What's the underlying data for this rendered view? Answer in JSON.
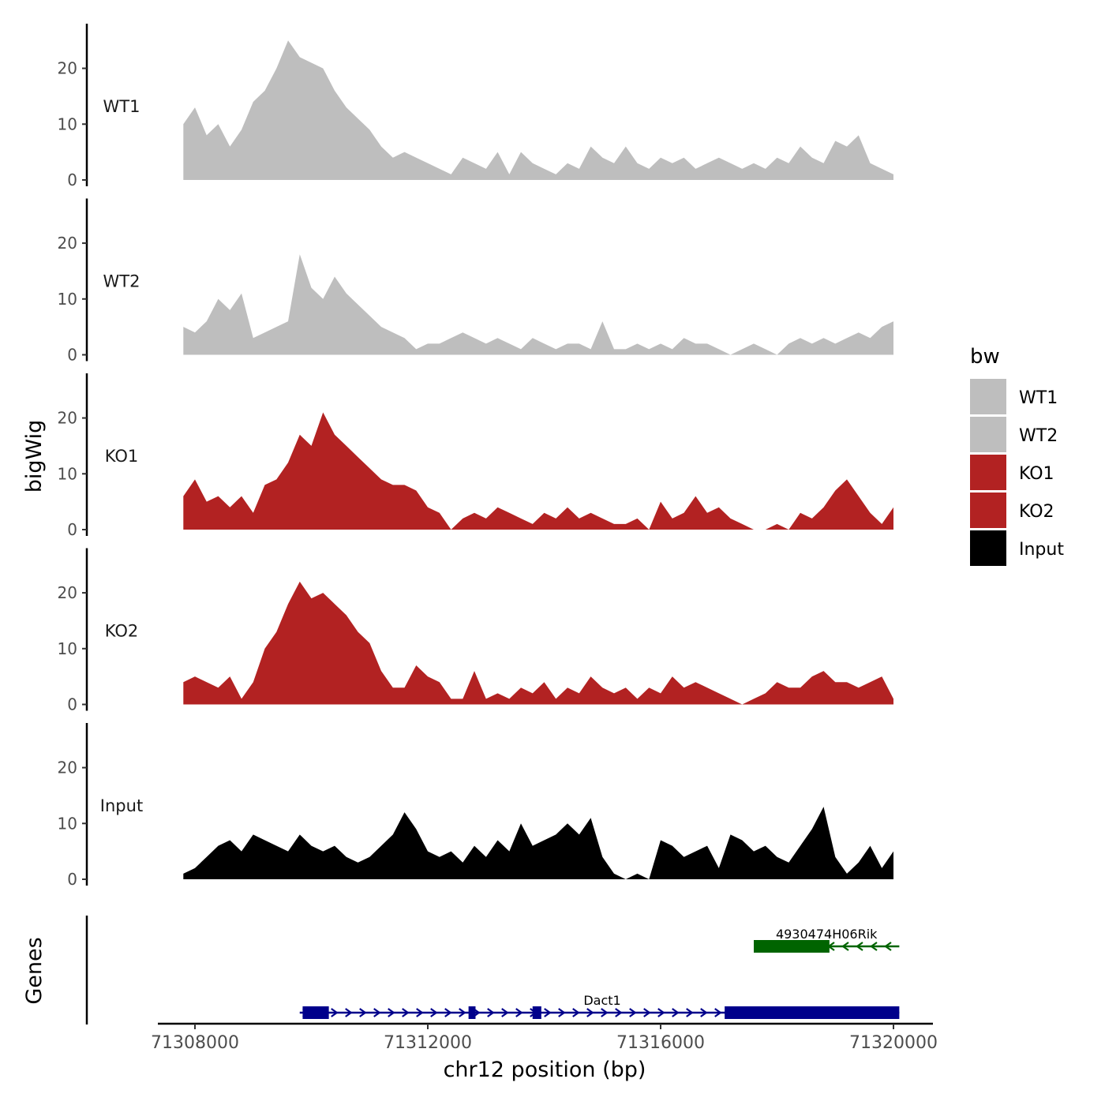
{
  "chart_data": {
    "type": "area",
    "ylabel": "bigWig",
    "xlabel": "chr12 position (bp)",
    "genes_label": "Genes",
    "chromosome": "chr12",
    "xlim": [
      71307800,
      71320100
    ],
    "x_ticks": [
      71308000,
      71312000,
      71316000,
      71320000
    ],
    "x_tick_labels": [
      "71308000",
      "71312000",
      "71316000",
      "71320000"
    ],
    "ylim": [
      0,
      28
    ],
    "y_ticks": [
      0,
      10,
      20
    ],
    "y_tick_labels": [
      "0",
      "10",
      "20"
    ],
    "legend": {
      "title": "bw",
      "entries": [
        {
          "label": "WT1",
          "color": "#bebebe"
        },
        {
          "label": "WT2",
          "color": "#bebebe"
        },
        {
          "label": "KO1",
          "color": "#b22222"
        },
        {
          "label": "KO2",
          "color": "#b22222"
        },
        {
          "label": "Input",
          "color": "#000000"
        }
      ]
    },
    "tracks": [
      {
        "name": "WT1",
        "color": "#bebebe",
        "x": [
          71307800,
          71308000,
          71308200,
          71308400,
          71308600,
          71308800,
          71309000,
          71309200,
          71309400,
          71309600,
          71309800,
          71310000,
          71310200,
          71310400,
          71310600,
          71310800,
          71311000,
          71311200,
          71311400,
          71311600,
          71311800,
          71312000,
          71312200,
          71312400,
          71312600,
          71312800,
          71313000,
          71313200,
          71313400,
          71313600,
          71313800,
          71314000,
          71314200,
          71314400,
          71314600,
          71314800,
          71315000,
          71315200,
          71315400,
          71315600,
          71315800,
          71316000,
          71316200,
          71316400,
          71316600,
          71316800,
          71317000,
          71317200,
          71317400,
          71317600,
          71317800,
          71318000,
          71318200,
          71318400,
          71318600,
          71318800,
          71319000,
          71319200,
          71319400,
          71319600,
          71319800,
          71320000
        ],
        "y": [
          10,
          13,
          8,
          10,
          6,
          9,
          14,
          16,
          20,
          25,
          22,
          21,
          20,
          16,
          13,
          11,
          9,
          6,
          4,
          5,
          4,
          3,
          2,
          1,
          4,
          3,
          2,
          5,
          1,
          5,
          3,
          2,
          1,
          3,
          2,
          6,
          4,
          3,
          6,
          3,
          2,
          4,
          3,
          4,
          2,
          3,
          4,
          3,
          2,
          3,
          2,
          4,
          3,
          6,
          4,
          3,
          7,
          6,
          8,
          3,
          2,
          1
        ]
      },
      {
        "name": "WT2",
        "color": "#bebebe",
        "x": [
          71307800,
          71308000,
          71308200,
          71308400,
          71308600,
          71308800,
          71309000,
          71309200,
          71309400,
          71309600,
          71309800,
          71310000,
          71310200,
          71310400,
          71310600,
          71310800,
          71311000,
          71311200,
          71311400,
          71311600,
          71311800,
          71312000,
          71312200,
          71312400,
          71312600,
          71312800,
          71313000,
          71313200,
          71313400,
          71313600,
          71313800,
          71314000,
          71314200,
          71314400,
          71314600,
          71314800,
          71315000,
          71315200,
          71315400,
          71315600,
          71315800,
          71316000,
          71316200,
          71316400,
          71316600,
          71316800,
          71317000,
          71317200,
          71317400,
          71317600,
          71317800,
          71318000,
          71318200,
          71318400,
          71318600,
          71318800,
          71319000,
          71319200,
          71319400,
          71319600,
          71319800,
          71320000
        ],
        "y": [
          5,
          4,
          6,
          10,
          8,
          11,
          3,
          4,
          5,
          6,
          18,
          12,
          10,
          14,
          11,
          9,
          7,
          5,
          4,
          3,
          1,
          2,
          2,
          3,
          4,
          3,
          2,
          3,
          2,
          1,
          3,
          2,
          1,
          2,
          2,
          1,
          6,
          1,
          1,
          2,
          1,
          2,
          1,
          3,
          2,
          2,
          1,
          0,
          1,
          2,
          1,
          0,
          2,
          3,
          2,
          3,
          2,
          3,
          4,
          3,
          5,
          6
        ]
      },
      {
        "name": "KO1",
        "color": "#b22222",
        "x": [
          71307800,
          71308000,
          71308200,
          71308400,
          71308600,
          71308800,
          71309000,
          71309200,
          71309400,
          71309600,
          71309800,
          71310000,
          71310200,
          71310400,
          71310600,
          71310800,
          71311000,
          71311200,
          71311400,
          71311600,
          71311800,
          71312000,
          71312200,
          71312400,
          71312600,
          71312800,
          71313000,
          71313200,
          71313400,
          71313600,
          71313800,
          71314000,
          71314200,
          71314400,
          71314600,
          71314800,
          71315000,
          71315200,
          71315400,
          71315600,
          71315800,
          71316000,
          71316200,
          71316400,
          71316600,
          71316800,
          71317000,
          71317200,
          71317400,
          71317600,
          71317800,
          71318000,
          71318200,
          71318400,
          71318600,
          71318800,
          71319000,
          71319200,
          71319400,
          71319600,
          71319800,
          71320000
        ],
        "y": [
          6,
          9,
          5,
          6,
          4,
          6,
          3,
          8,
          9,
          12,
          17,
          15,
          21,
          17,
          15,
          13,
          11,
          9,
          8,
          8,
          7,
          4,
          3,
          0,
          2,
          3,
          2,
          4,
          3,
          2,
          1,
          3,
          2,
          4,
          2,
          3,
          2,
          1,
          1,
          2,
          0,
          5,
          2,
          3,
          6,
          3,
          4,
          2,
          1,
          0,
          0,
          1,
          0,
          3,
          2,
          4,
          7,
          9,
          6,
          3,
          1,
          4
        ]
      },
      {
        "name": "KO2",
        "color": "#b22222",
        "x": [
          71307800,
          71308000,
          71308200,
          71308400,
          71308600,
          71308800,
          71309000,
          71309200,
          71309400,
          71309600,
          71309800,
          71310000,
          71310200,
          71310400,
          71310600,
          71310800,
          71311000,
          71311200,
          71311400,
          71311600,
          71311800,
          71312000,
          71312200,
          71312400,
          71312600,
          71312800,
          71313000,
          71313200,
          71313400,
          71313600,
          71313800,
          71314000,
          71314200,
          71314400,
          71314600,
          71314800,
          71315000,
          71315200,
          71315400,
          71315600,
          71315800,
          71316000,
          71316200,
          71316400,
          71316600,
          71316800,
          71317000,
          71317200,
          71317400,
          71317600,
          71317800,
          71318000,
          71318200,
          71318400,
          71318600,
          71318800,
          71319000,
          71319200,
          71319400,
          71319600,
          71319800,
          71320000
        ],
        "y": [
          4,
          5,
          4,
          3,
          5,
          1,
          4,
          10,
          13,
          18,
          22,
          19,
          20,
          18,
          16,
          13,
          11,
          6,
          3,
          3,
          7,
          5,
          4,
          1,
          1,
          6,
          1,
          2,
          1,
          3,
          2,
          4,
          1,
          3,
          2,
          5,
          3,
          2,
          3,
          1,
          3,
          2,
          5,
          3,
          4,
          3,
          2,
          1,
          0,
          1,
          2,
          4,
          3,
          3,
          5,
          6,
          4,
          4,
          3,
          4,
          5,
          1
        ]
      },
      {
        "name": "Input",
        "color": "#000000",
        "x": [
          71307800,
          71308000,
          71308200,
          71308400,
          71308600,
          71308800,
          71309000,
          71309200,
          71309400,
          71309600,
          71309800,
          71310000,
          71310200,
          71310400,
          71310600,
          71310800,
          71311000,
          71311200,
          71311400,
          71311600,
          71311800,
          71312000,
          71312200,
          71312400,
          71312600,
          71312800,
          71313000,
          71313200,
          71313400,
          71313600,
          71313800,
          71314000,
          71314200,
          71314400,
          71314600,
          71314800,
          71315000,
          71315200,
          71315400,
          71315600,
          71315800,
          71316000,
          71316200,
          71316400,
          71316600,
          71316800,
          71317000,
          71317200,
          71317400,
          71317600,
          71317800,
          71318000,
          71318200,
          71318400,
          71318600,
          71318800,
          71319000,
          71319200,
          71319400,
          71319600,
          71319800,
          71320000
        ],
        "y": [
          1,
          2,
          4,
          6,
          7,
          5,
          8,
          7,
          6,
          5,
          8,
          6,
          5,
          6,
          4,
          3,
          4,
          6,
          8,
          12,
          9,
          5,
          4,
          5,
          3,
          6,
          4,
          7,
          5,
          10,
          6,
          7,
          8,
          10,
          8,
          11,
          4,
          1,
          0,
          1,
          0,
          7,
          6,
          4,
          5,
          6,
          2,
          8,
          7,
          5,
          6,
          4,
          3,
          6,
          9,
          13,
          4,
          1,
          3,
          6,
          2,
          5
        ]
      }
    ],
    "genes": [
      {
        "name": "4930474H06Rik",
        "color": "#006400",
        "strand": "-",
        "start": 71317600,
        "end": 71320100,
        "exons": [
          {
            "start": 71317600,
            "end": 71318900
          }
        ]
      },
      {
        "name": "Dact1",
        "color": "#00008b",
        "strand": "+",
        "start": 71309800,
        "end": 71320100,
        "exons": [
          {
            "start": 71309850,
            "end": 71310300
          },
          {
            "start": 71312700,
            "end": 71312820
          },
          {
            "start": 71313800,
            "end": 71313950
          },
          {
            "start": 71317100,
            "end": 71320100
          }
        ]
      }
    ]
  }
}
